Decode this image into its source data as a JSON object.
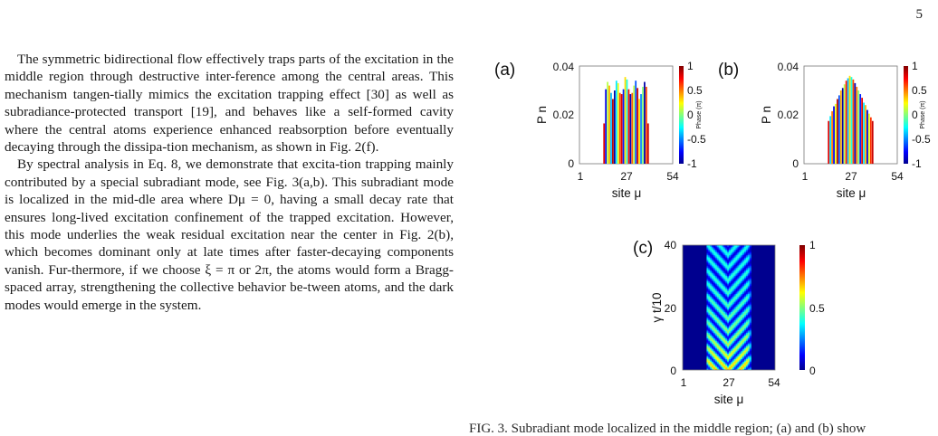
{
  "page": {
    "number": "5"
  },
  "body_text": {
    "paragraphs": [
      "The symmetric bidirectional flow effectively traps parts of the excitation in the middle region through destructive inter-­ference among the central areas. This mechanism tangen-­tially mimics the excitation trapping effect [30] as well as subradiance-protected transport [19], and behaves like a self-­formed cavity where the central atoms experience enhanced reabsorption before eventually decaying through the dissipa-­tion mechanism, as shown in Fig. 2(f).",
      "By spectral analysis in Eq. 8, we demonstrate that excita-­tion trapping mainly contributed by a special subradiant mode, see Fig. 3(a,b). This subradiant mode is localized in the mid-­dle area where Dμ = 0, having a small decay rate that ensures long-lived excitation confinement of the trapped excitation. However, this mode underlies the weak residual excitation near the center in Fig. 2(b), which becomes dominant only at late times after faster-decaying components vanish. Fur-­thermore, if we choose ξ = π or 2π, the atoms would form a Bragg-spaced array, strengthening the collective behavior be-­tween atoms, and the dark modes would emerge in the system."
    ]
  },
  "figure": {
    "caption_partial": "FIG. 3. Subradiant mode localized in the middle region; (a) and (b) show",
    "colormap": {
      "stops": [
        "#00008f",
        "#0000ff",
        "#00ffff",
        "#ffff00",
        "#ff0000",
        "#800000"
      ]
    },
    "panels": [
      {
        "label": "(a)",
        "y_label": "P n",
        "x_label": "site μ",
        "x_ticks": [
          "1",
          "27",
          "54"
        ],
        "y_ticks": [
          "0",
          "0.02",
          "0.04"
        ],
        "colorbar_ticks": [
          "1",
          "0.5",
          "0",
          "-0.5",
          "-1"
        ],
        "colorbar_title": "Phase (π)"
      },
      {
        "label": "(b)",
        "y_label": "P n",
        "x_label": "site μ",
        "x_ticks": [
          "1",
          "27",
          "54"
        ],
        "y_ticks": [
          "0",
          "0.02",
          "0.04"
        ],
        "colorbar_ticks": [
          "1",
          "0.5",
          "0",
          "-0.5",
          "-1"
        ],
        "colorbar_title": "Phase (π)"
      },
      {
        "label": "(c)",
        "y_label": "γ t/10",
        "x_label": "site μ",
        "x_ticks": [
          "1",
          "27",
          "54"
        ],
        "y_ticks": [
          "0",
          "20",
          "40"
        ],
        "colorbar_ticks": [
          "1",
          "0.5",
          "0"
        ]
      }
    ]
  },
  "chart_data": [
    {
      "type": "bar",
      "panel": "(a)",
      "xlabel": "site μ",
      "ylabel": "P n",
      "xlim": [
        1,
        54
      ],
      "ylim": [
        0,
        0.04
      ],
      "x": [
        15,
        16,
        17,
        18,
        19,
        20,
        21,
        22,
        23,
        24,
        25,
        26,
        27,
        28,
        29,
        30,
        31,
        32,
        33,
        34,
        35,
        36,
        37,
        38,
        39,
        40
      ],
      "values": [
        0.0165,
        0.0305,
        0.0335,
        0.032,
        0.029,
        0.0265,
        0.03,
        0.034,
        0.033,
        0.029,
        0.0285,
        0.0305,
        0.0355,
        0.0345,
        0.0305,
        0.0285,
        0.029,
        0.032,
        0.034,
        0.031,
        0.0265,
        0.0285,
        0.0315,
        0.0335,
        0.0315,
        0.0165
      ],
      "phase": [
        0.8,
        -0.8,
        0.1,
        0.4,
        -0.4,
        0.9,
        -0.95,
        -0.3,
        0.2,
        0.6,
        0.8,
        -0.7,
        0.3,
        -0.2,
        0.7,
        -0.9,
        0.55,
        0.1,
        -0.6,
        0.85,
        0.3,
        -0.5,
        0.0,
        -0.95,
        0.6,
        0.85
      ]
    },
    {
      "type": "bar",
      "panel": "(b)",
      "xlabel": "site μ",
      "ylabel": "P n",
      "xlim": [
        1,
        54
      ],
      "ylim": [
        0,
        0.04
      ],
      "x": [
        15,
        16,
        17,
        18,
        19,
        20,
        21,
        22,
        23,
        24,
        25,
        26,
        27,
        28,
        29,
        30,
        31,
        32,
        33,
        34,
        35,
        36,
        37,
        38,
        39,
        40
      ],
      "values": [
        0.0175,
        0.0195,
        0.0215,
        0.0235,
        0.0245,
        0.0265,
        0.028,
        0.03,
        0.031,
        0.0325,
        0.034,
        0.035,
        0.036,
        0.0355,
        0.0345,
        0.033,
        0.0315,
        0.03,
        0.0285,
        0.027,
        0.025,
        0.024,
        0.022,
        0.0205,
        0.019,
        0.0175
      ],
      "phase": [
        0.8,
        -0.3,
        0.5,
        -0.8,
        0.2,
        0.9,
        -0.6,
        0.4,
        -0.95,
        0.1,
        0.7,
        -0.4,
        0.3,
        -0.2,
        0.6,
        -0.9,
        0.5,
        0.0,
        -0.7,
        0.8,
        -0.3,
        0.4,
        -0.85,
        0.2,
        0.65,
        0.85
      ]
    },
    {
      "type": "heatmap",
      "panel": "(c)",
      "xlabel": "site μ",
      "ylabel": "γ t/10",
      "xlim": [
        1,
        54
      ],
      "ylim": [
        0,
        40
      ],
      "color_range": [
        0,
        1
      ],
      "description_values": {
        "active_sites": [
          15,
          40
        ],
        "center_site": 27
      }
    }
  ]
}
